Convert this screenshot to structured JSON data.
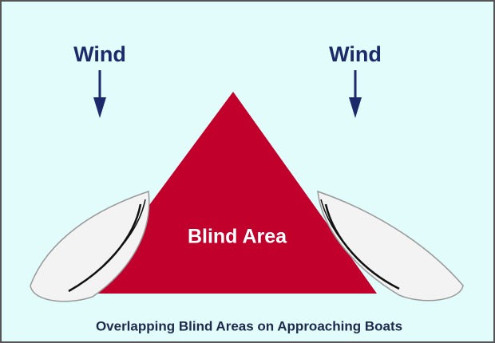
{
  "wind_labels": [
    "Wind",
    "Wind"
  ],
  "area_label": "Blind Area",
  "caption": "Overlapping Blind Areas on Approaching Boats"
}
